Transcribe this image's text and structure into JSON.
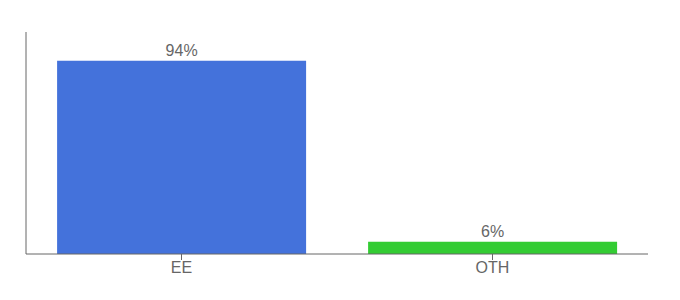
{
  "chart_data": {
    "type": "bar",
    "categories": [
      "EE",
      "OTH"
    ],
    "values": [
      94,
      6
    ],
    "value_labels": [
      "94%",
      "6%"
    ],
    "colors": [
      "#4472db",
      "#33cc33"
    ],
    "ylim": [
      0,
      108
    ],
    "data_labels": true,
    "tick_labels": "x",
    "grid": false
  }
}
